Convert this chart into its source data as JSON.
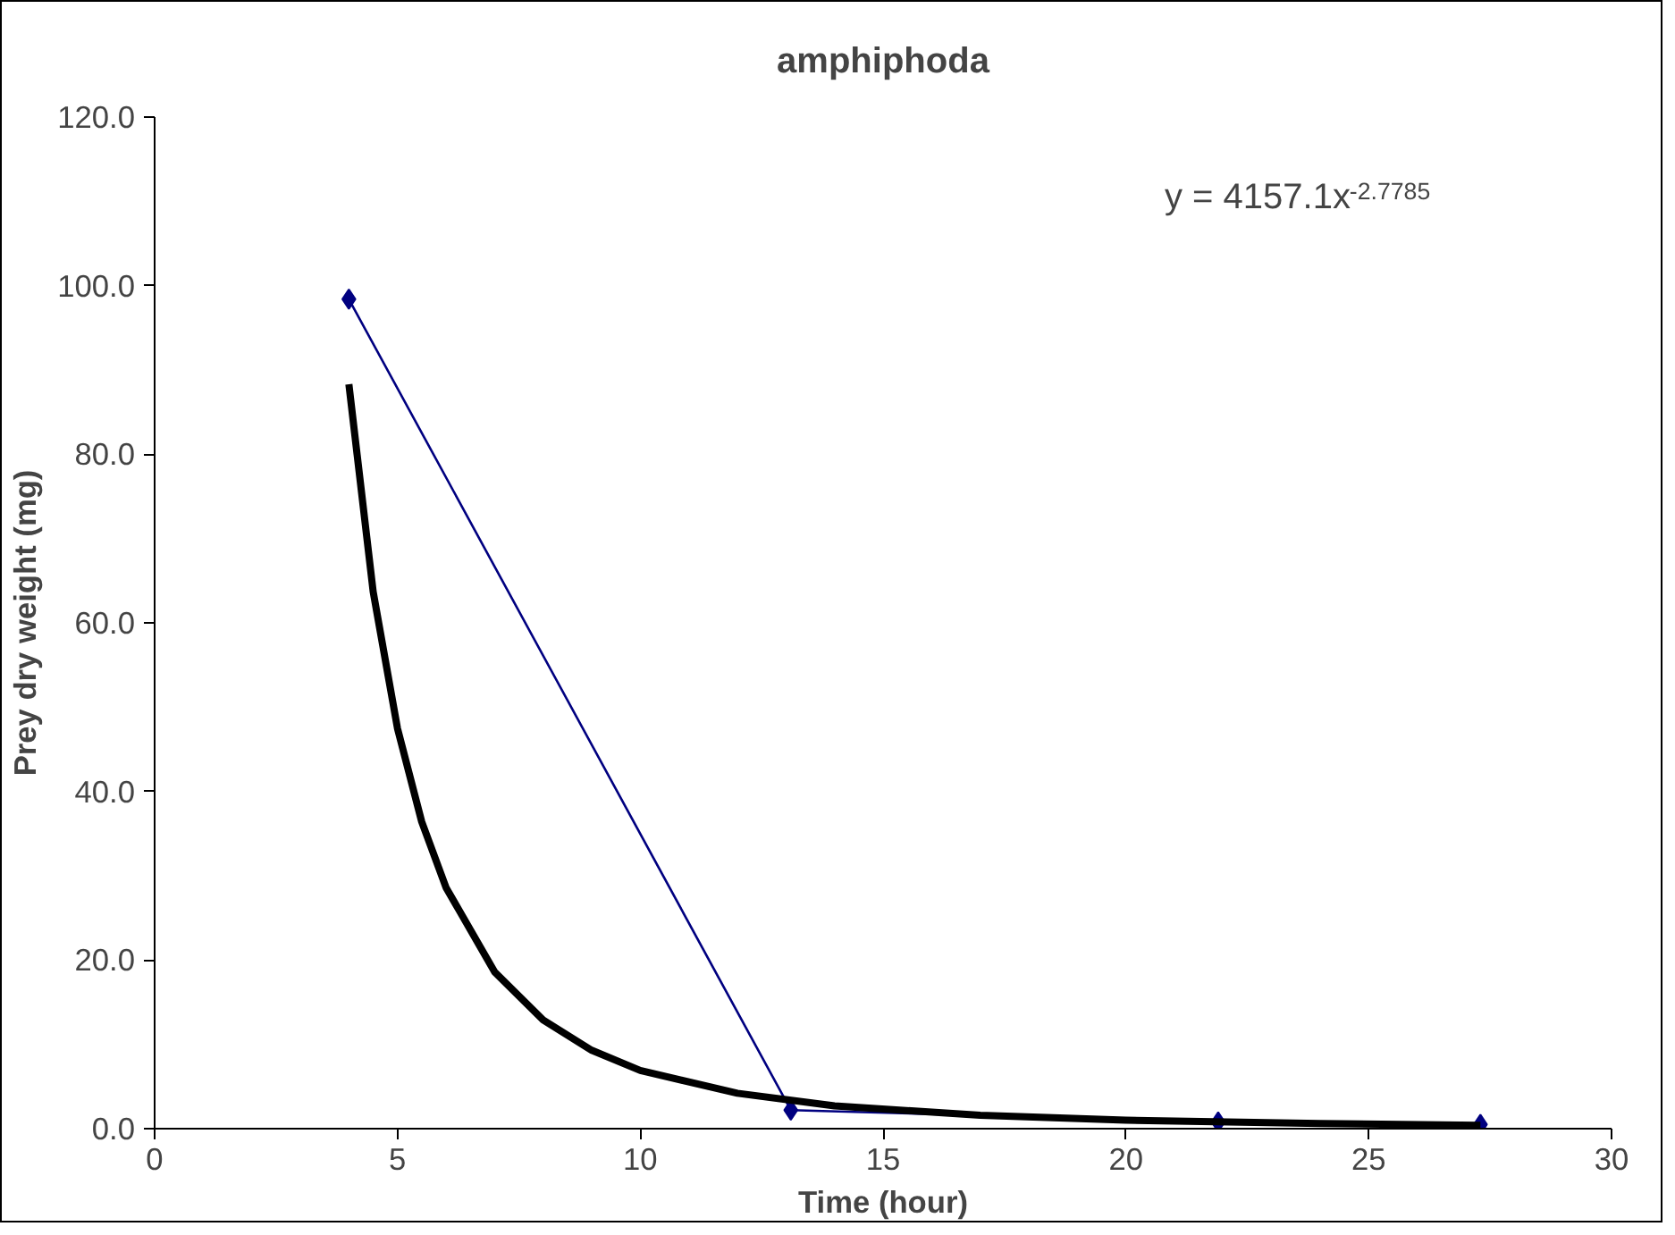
{
  "chart_data": {
    "type": "line",
    "title": "amphiphoda",
    "xlabel": "Time (hour)",
    "ylabel": "Prey dry weight (mg)",
    "xlim": [
      0,
      30
    ],
    "xticks": [
      0,
      5,
      10,
      15,
      20,
      25,
      30
    ],
    "ylim": [
      0,
      120
    ],
    "yticks": [
      {
        "value": 0,
        "label": "0.0"
      },
      {
        "value": 20,
        "label": "20.0"
      },
      {
        "value": 40,
        "label": "40.0"
      },
      {
        "value": 60,
        "label": "60.0"
      },
      {
        "value": 80,
        "label": "80.0"
      },
      {
        "value": 100,
        "label": "100.0"
      },
      {
        "value": 120,
        "label": "120.0"
      }
    ],
    "series": [
      {
        "color": "#000080",
        "marker": "diamond",
        "x": [
          4.0,
          13.1,
          21.9,
          27.3
        ],
        "values": [
          98.4,
          2.2,
          0.8,
          0.5
        ]
      },
      {
        "color": "#000000",
        "marker": "none",
        "x": [
          4,
          4.5,
          5,
          5.5,
          6,
          7,
          8,
          9,
          10,
          12,
          14,
          17,
          20,
          24,
          27.3
        ],
        "values": [
          88.3,
          63.7,
          47.5,
          36.4,
          28.6,
          18.6,
          12.9,
          9.3,
          6.9,
          4.2,
          2.7,
          1.6,
          1.0,
          0.6,
          0.4
        ]
      }
    ],
    "annotations": [
      "y = 4157.1x$^{-2.7785}$"
    ],
    "grid": false
  }
}
